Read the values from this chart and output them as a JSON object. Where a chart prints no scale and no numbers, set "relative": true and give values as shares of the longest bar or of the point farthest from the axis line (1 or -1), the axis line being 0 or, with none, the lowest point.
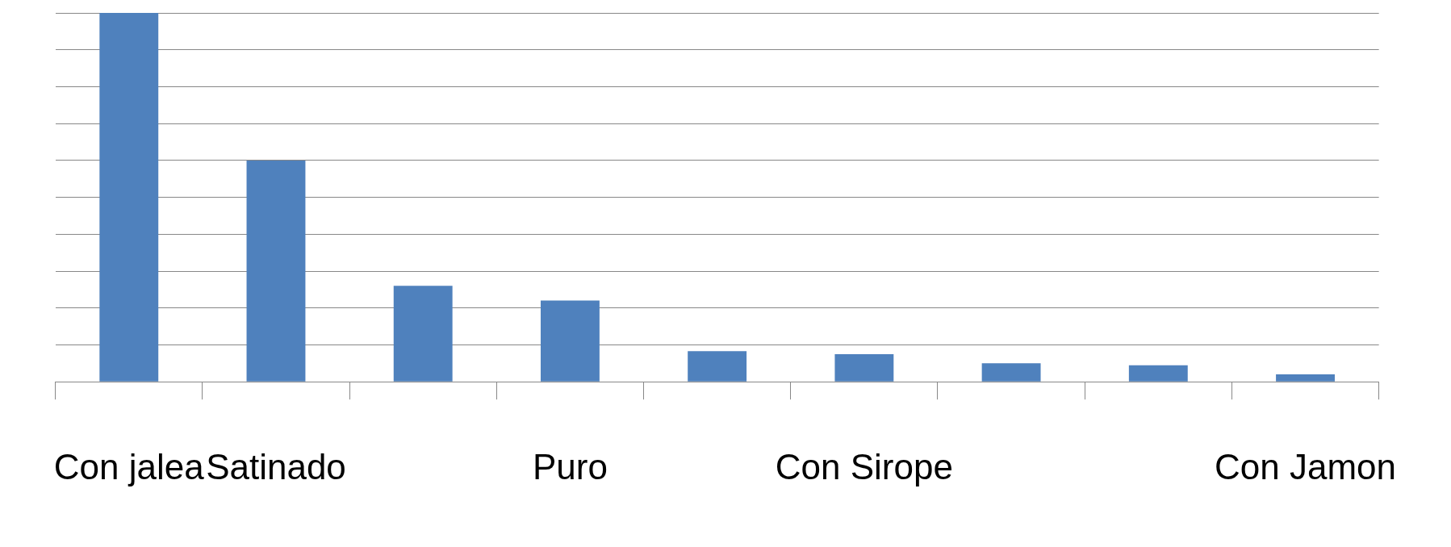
{
  "chart_data": {
    "type": "bar",
    "relative": true,
    "categories": [
      "Con jalea",
      "Satinado",
      null,
      "Puro",
      null,
      "Con Sirope",
      null,
      null,
      "Con Jamon"
    ],
    "values": [
      1,
      0.6,
      0.26,
      0.22,
      0.083,
      0.075,
      0.05,
      0.045,
      0.02
    ],
    "color": "#4f81bd",
    "grid": "y",
    "legend": false
  }
}
